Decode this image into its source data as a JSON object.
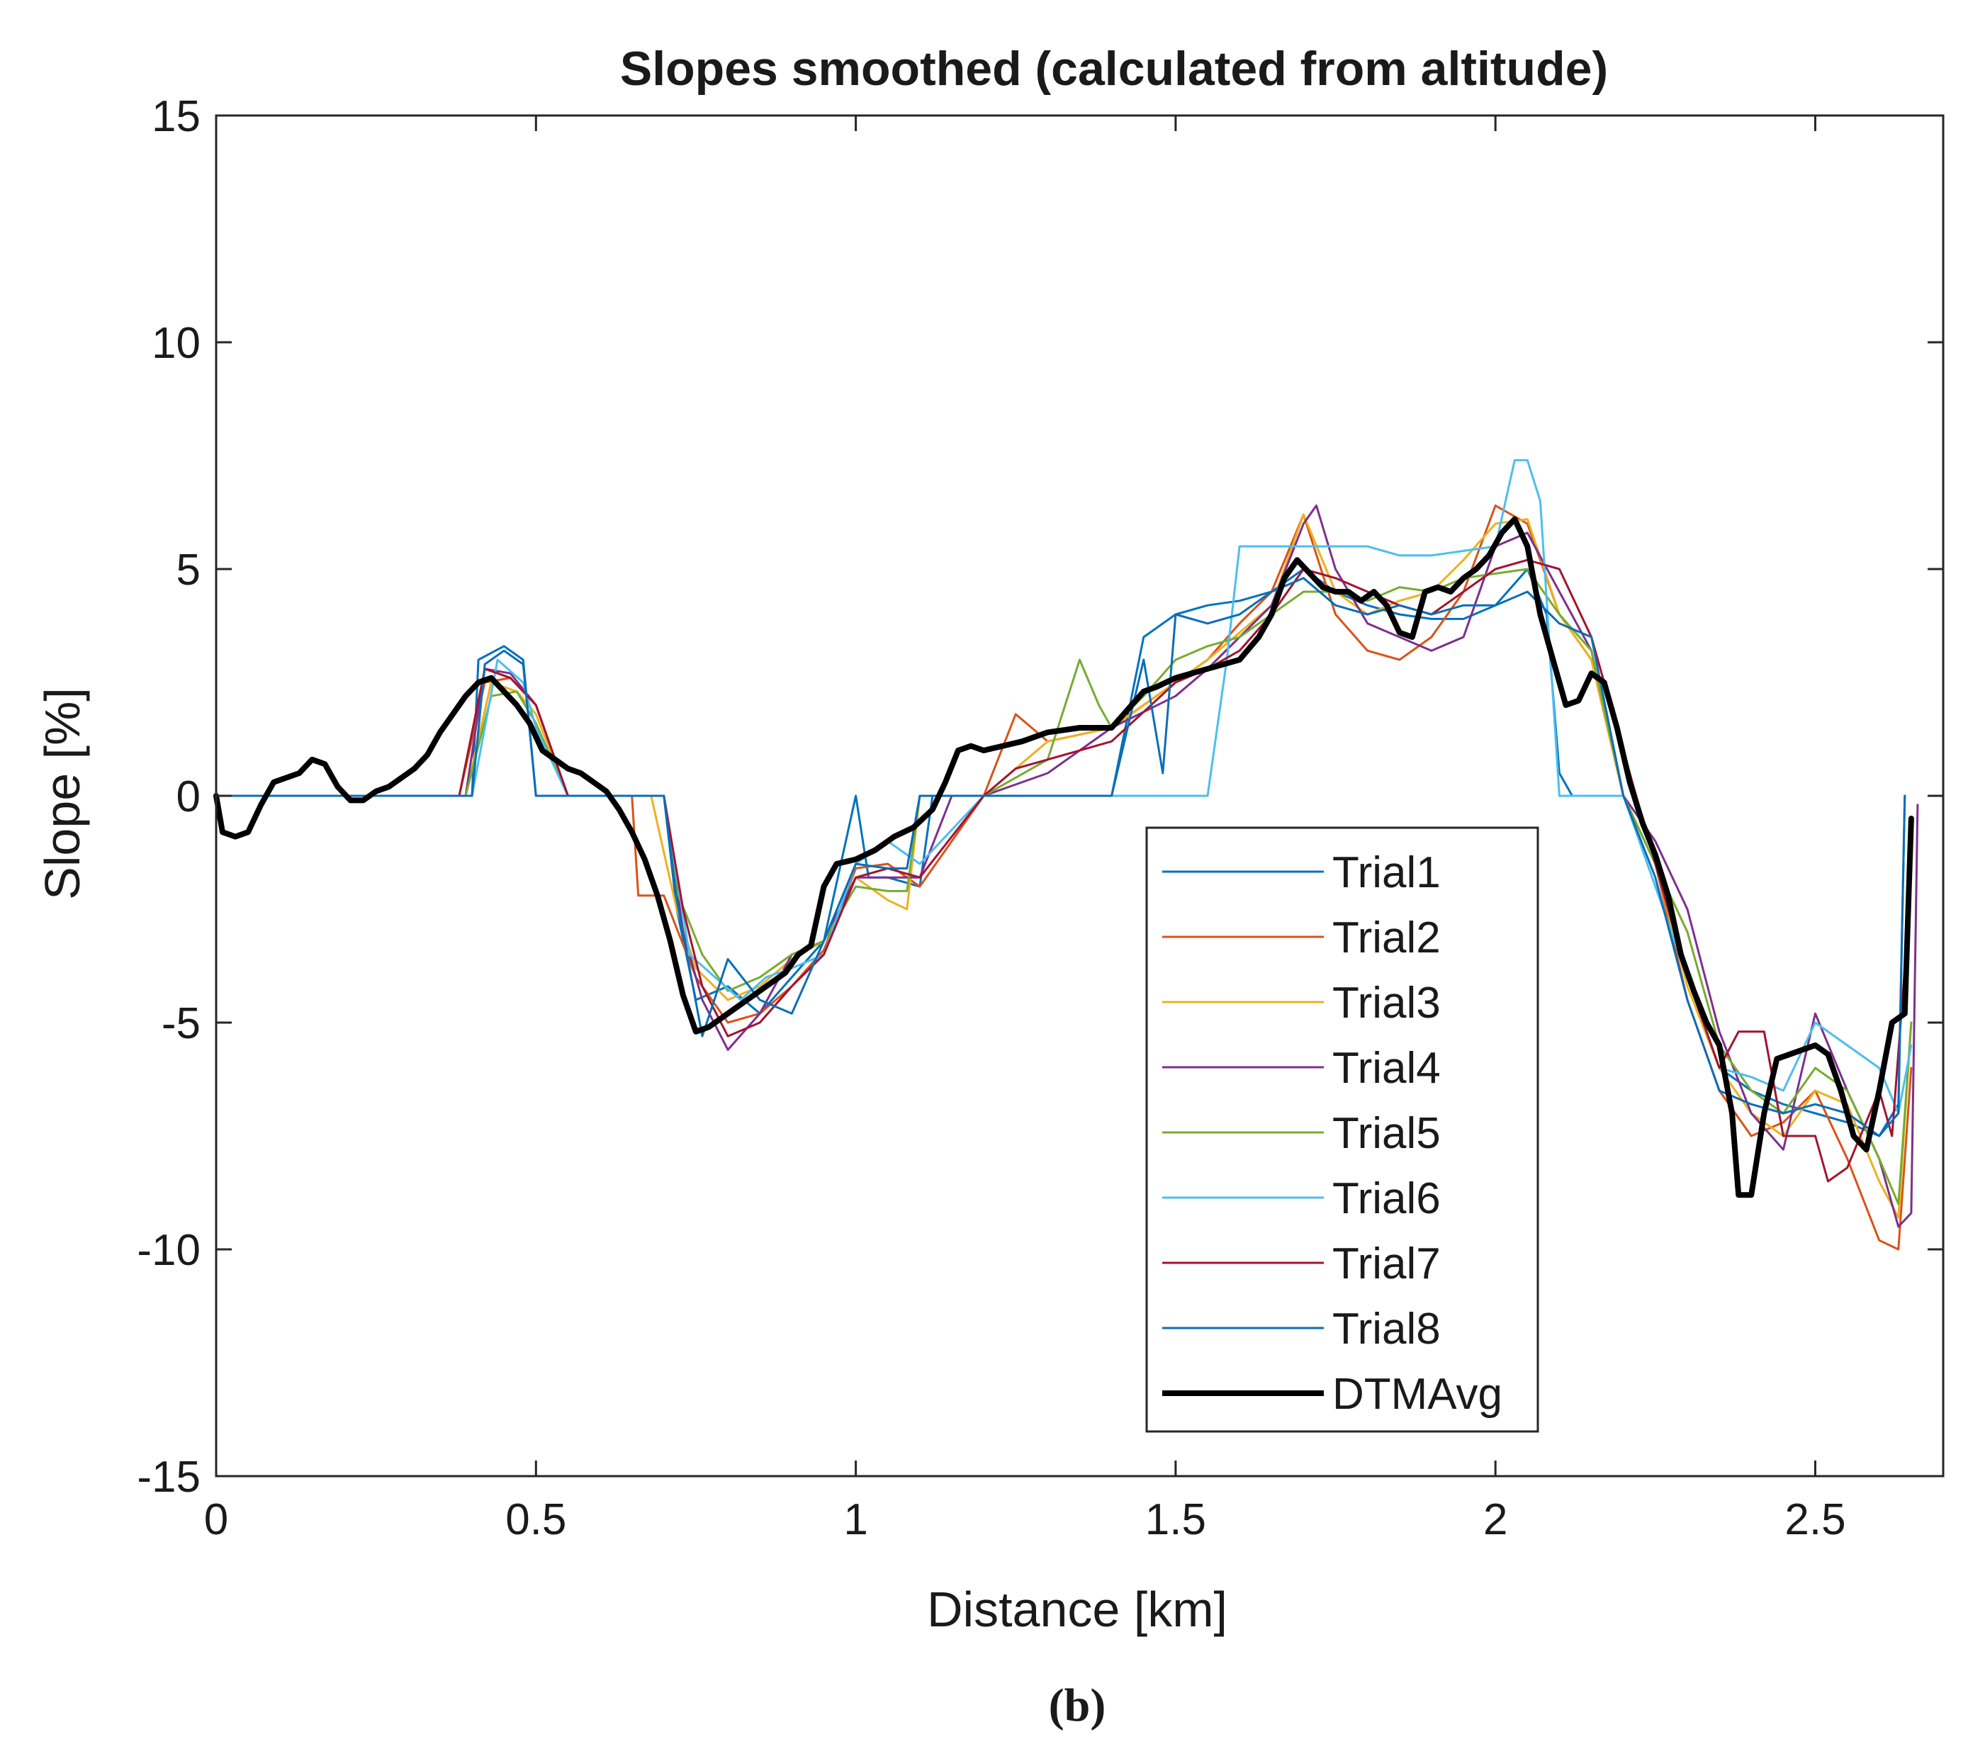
{
  "chart_data": {
    "type": "line",
    "title": "Slopes smoothed (calculated from altitude)",
    "xlabel": "Distance [km]",
    "ylabel": "Slope [%]",
    "xlim": [
      0,
      2.7
    ],
    "ylim": [
      -15,
      15
    ],
    "xticks": [
      0,
      0.5,
      1,
      1.5,
      2,
      2.5
    ],
    "xtick_labels": [
      "0",
      "0.5",
      "1",
      "1.5",
      "2",
      "2.5"
    ],
    "yticks": [
      -15,
      -10,
      -5,
      0,
      5,
      10,
      15
    ],
    "ytick_labels": [
      "-15",
      "-10",
      "-5",
      "0",
      "5",
      "10",
      "15"
    ],
    "grid": false,
    "legend_position": "center-right",
    "caption": "(b)",
    "series": [
      {
        "name": "Trial1",
        "color": "#0072BD",
        "width": 3,
        "x": [
          0,
          0.4,
          0.41,
          0.45,
          0.48,
          0.5,
          0.55,
          0.6,
          0.65,
          0.7,
          0.72,
          0.75,
          0.8,
          0.85,
          0.9,
          0.95,
          1.0,
          1.02,
          1.05,
          1.1,
          1.12,
          1.2,
          1.3,
          1.4,
          1.45,
          1.5,
          1.55,
          1.6,
          1.65,
          1.7,
          1.75,
          1.8,
          1.85,
          1.9,
          1.95,
          2.0,
          2.05,
          2.08,
          2.1,
          2.12,
          2.15,
          2.2,
          2.25,
          2.3,
          2.35,
          2.4,
          2.45,
          2.5,
          2.55,
          2.6,
          2.63,
          2.64
        ],
        "y": [
          0,
          0,
          3.0,
          3.3,
          3.0,
          0,
          0,
          0,
          0,
          0,
          -2.5,
          -4.5,
          -4.2,
          -4.8,
          -4.0,
          -3.2,
          0,
          -1.8,
          -1.8,
          -2.0,
          0,
          0,
          0,
          0,
          3.5,
          4.0,
          4.2,
          4.3,
          4.5,
          5.0,
          4.5,
          4.2,
          4.0,
          3.9,
          3.9,
          4.2,
          5.0,
          4.0,
          0.5,
          0,
          0,
          0,
          -1.5,
          -4.0,
          -6.0,
          -6.5,
          -6.8,
          -7.0,
          -7.2,
          -7.5,
          -6.8,
          0
        ]
      },
      {
        "name": "Trial2",
        "color": "#D95319",
        "width": 3,
        "x": [
          0,
          0.38,
          0.42,
          0.46,
          0.5,
          0.55,
          0.6,
          0.65,
          0.66,
          0.7,
          0.75,
          0.8,
          0.85,
          0.9,
          0.95,
          1.0,
          1.05,
          1.1,
          1.2,
          1.25,
          1.3,
          1.4,
          1.5,
          1.55,
          1.6,
          1.65,
          1.7,
          1.75,
          1.8,
          1.85,
          1.9,
          1.95,
          2.0,
          2.05,
          2.1,
          2.15,
          2.2,
          2.25,
          2.3,
          2.35,
          2.4,
          2.45,
          2.5,
          2.55,
          2.6,
          2.63,
          2.65
        ],
        "y": [
          0,
          0,
          2.5,
          2.6,
          2.0,
          0,
          0,
          0,
          -2.2,
          -2.2,
          -4.0,
          -5.0,
          -4.8,
          -4.2,
          -3.4,
          -1.6,
          -1.5,
          -2.0,
          0,
          1.8,
          1.2,
          1.5,
          2.5,
          3.0,
          3.8,
          4.5,
          6.2,
          4.0,
          3.2,
          3.0,
          3.5,
          4.5,
          6.4,
          6.0,
          4.0,
          3.0,
          0,
          -1.5,
          -4.5,
          -6.5,
          -7.5,
          -7.2,
          -6.5,
          -8.0,
          -9.8,
          -10.0,
          -6.0
        ]
      },
      {
        "name": "Trial3",
        "color": "#EDB120",
        "width": 3,
        "x": [
          0,
          0.39,
          0.43,
          0.47,
          0.5,
          0.55,
          0.6,
          0.68,
          0.72,
          0.75,
          0.8,
          0.85,
          0.9,
          0.95,
          1.0,
          1.05,
          1.08,
          1.1,
          1.2,
          1.3,
          1.4,
          1.5,
          1.55,
          1.6,
          1.65,
          1.7,
          1.75,
          1.8,
          1.85,
          1.9,
          1.95,
          2.0,
          2.05,
          2.1,
          2.15,
          2.2,
          2.25,
          2.3,
          2.35,
          2.4,
          2.45,
          2.5,
          2.55,
          2.6,
          2.63,
          2.65
        ],
        "y": [
          0,
          0,
          2.5,
          2.3,
          1.8,
          0,
          0,
          0,
          -2.5,
          -3.8,
          -4.5,
          -4.2,
          -3.6,
          -3.2,
          -1.8,
          -2.3,
          -2.5,
          0,
          0,
          1.2,
          1.5,
          2.5,
          3.0,
          3.6,
          4.2,
          6.2,
          4.5,
          4.0,
          4.3,
          4.5,
          5.2,
          6.0,
          6.1,
          4.0,
          3.0,
          0,
          -1.5,
          -4.2,
          -6.0,
          -7.0,
          -7.5,
          -6.5,
          -6.8,
          -8.5,
          -9.3,
          -5.0
        ]
      },
      {
        "name": "Trial4",
        "color": "#7E2F8E",
        "width": 3,
        "x": [
          0,
          0.39,
          0.42,
          0.46,
          0.5,
          0.55,
          0.6,
          0.7,
          0.73,
          0.76,
          0.8,
          0.85,
          0.9,
          0.95,
          1.0,
          1.05,
          1.1,
          1.15,
          1.2,
          1.3,
          1.4,
          1.5,
          1.55,
          1.6,
          1.65,
          1.7,
          1.72,
          1.75,
          1.8,
          1.85,
          1.9,
          1.95,
          2.0,
          2.05,
          2.1,
          2.15,
          2.2,
          2.25,
          2.3,
          2.35,
          2.4,
          2.45,
          2.5,
          2.55,
          2.6,
          2.63,
          2.65,
          2.66
        ],
        "y": [
          0,
          0,
          2.8,
          2.7,
          2.0,
          0,
          0,
          0,
          -3.0,
          -4.5,
          -5.6,
          -4.8,
          -3.5,
          -3.2,
          -1.8,
          -1.8,
          -1.8,
          0,
          0,
          0.5,
          1.5,
          2.2,
          2.8,
          3.5,
          4.2,
          6.0,
          6.4,
          5.0,
          3.8,
          3.5,
          3.2,
          3.5,
          5.5,
          5.8,
          4.5,
          3.2,
          0,
          -1.0,
          -2.5,
          -5.2,
          -7.0,
          -7.8,
          -4.8,
          -6.5,
          -8.0,
          -9.5,
          -9.2,
          -0.2
        ]
      },
      {
        "name": "Trial5",
        "color": "#77AC30",
        "width": 3,
        "x": [
          0,
          0.39,
          0.43,
          0.47,
          0.5,
          0.55,
          0.6,
          0.7,
          0.72,
          0.76,
          0.8,
          0.85,
          0.9,
          0.95,
          1.0,
          1.05,
          1.08,
          1.1,
          1.2,
          1.3,
          1.35,
          1.38,
          1.4,
          1.45,
          1.5,
          1.55,
          1.6,
          1.65,
          1.7,
          1.75,
          1.8,
          1.85,
          1.9,
          1.95,
          2.0,
          2.05,
          2.1,
          2.15,
          2.2,
          2.25,
          2.3,
          2.35,
          2.4,
          2.45,
          2.5,
          2.55,
          2.6,
          2.63,
          2.65
        ],
        "y": [
          0,
          0,
          2.2,
          2.3,
          1.6,
          0,
          0,
          0,
          -2.1,
          -3.5,
          -4.3,
          -4.0,
          -3.5,
          -3.2,
          -2.0,
          -2.1,
          -2.1,
          0,
          0,
          0.8,
          3.0,
          2.0,
          1.5,
          2.2,
          3.0,
          3.3,
          3.5,
          4.0,
          4.5,
          4.5,
          4.3,
          4.6,
          4.5,
          4.8,
          4.9,
          5.0,
          4.0,
          3.2,
          0,
          -1.5,
          -3.0,
          -5.5,
          -6.5,
          -7.0,
          -6.0,
          -6.5,
          -8.0,
          -9.0,
          -5.0
        ]
      },
      {
        "name": "Trial6",
        "color": "#4DBEEE",
        "width": 3,
        "x": [
          0,
          0.4,
          0.44,
          0.48,
          0.5,
          0.55,
          0.6,
          0.7,
          0.74,
          0.78,
          0.82,
          0.86,
          0.9,
          0.95,
          1.0,
          1.05,
          1.1,
          1.2,
          1.3,
          1.4,
          1.5,
          1.55,
          1.58,
          1.6,
          1.62,
          1.65,
          1.7,
          1.75,
          1.8,
          1.85,
          1.9,
          1.95,
          2.0,
          2.03,
          2.05,
          2.07,
          2.1,
          2.15,
          2.2,
          2.25,
          2.3,
          2.35,
          2.4,
          2.45,
          2.5,
          2.55,
          2.6,
          2.63,
          2.65
        ],
        "y": [
          0,
          0,
          3.0,
          2.5,
          1.5,
          0,
          0,
          0,
          -3.5,
          -4.0,
          -4.5,
          -4.0,
          -3.8,
          -3.5,
          -1.5,
          -1.0,
          -1.5,
          0,
          0,
          0,
          0,
          0,
          3.0,
          5.5,
          5.5,
          5.5,
          5.5,
          5.5,
          5.5,
          5.3,
          5.3,
          5.4,
          5.5,
          7.4,
          7.4,
          6.5,
          0,
          0,
          0,
          -2.0,
          -4.0,
          -6.0,
          -6.2,
          -6.5,
          -5.0,
          -5.5,
          -6.0,
          -7.0,
          -5.5
        ]
      },
      {
        "name": "Trial7",
        "color": "#A2142F",
        "width": 3,
        "x": [
          0,
          0.38,
          0.42,
          0.46,
          0.5,
          0.55,
          0.6,
          0.7,
          0.73,
          0.76,
          0.8,
          0.85,
          0.9,
          0.95,
          1.0,
          1.05,
          1.1,
          1.2,
          1.25,
          1.3,
          1.4,
          1.5,
          1.55,
          1.6,
          1.65,
          1.7,
          1.75,
          1.8,
          1.85,
          1.9,
          1.95,
          2.0,
          2.05,
          2.1,
          2.15,
          2.2,
          2.25,
          2.3,
          2.35,
          2.38,
          2.42,
          2.45,
          2.5,
          2.52,
          2.55,
          2.6,
          2.62,
          2.64
        ],
        "y": [
          0,
          0,
          2.8,
          2.6,
          2.0,
          0,
          0,
          0,
          -2.5,
          -4.2,
          -5.3,
          -5.0,
          -4.2,
          -3.5,
          -1.8,
          -1.6,
          -1.8,
          0,
          0.6,
          0.8,
          1.2,
          2.5,
          2.8,
          3.2,
          4.0,
          5.0,
          4.8,
          4.5,
          4.2,
          4.0,
          4.5,
          5.0,
          5.2,
          5.0,
          3.5,
          1.0,
          -1.5,
          -4.0,
          -6.0,
          -5.2,
          -5.2,
          -7.5,
          -7.5,
          -8.5,
          -8.2,
          -6.5,
          -7.5,
          -3.8
        ]
      },
      {
        "name": "Trial8",
        "color": "#0B6EB5",
        "width": 3,
        "x": [
          0,
          0.4,
          0.42,
          0.45,
          0.48,
          0.5,
          0.55,
          0.6,
          0.7,
          0.72,
          0.76,
          0.8,
          0.85,
          0.9,
          0.95,
          1.0,
          1.05,
          1.08,
          1.1,
          1.2,
          1.3,
          1.4,
          1.45,
          1.48,
          1.5,
          1.55,
          1.6,
          1.65,
          1.7,
          1.75,
          1.8,
          1.85,
          1.9,
          1.95,
          2.0,
          2.05,
          2.1,
          2.15,
          2.2,
          2.25,
          2.3,
          2.35,
          2.4,
          2.45,
          2.5,
          2.55,
          2.6,
          2.63,
          2.64
        ],
        "y": [
          0,
          0,
          2.9,
          3.2,
          2.9,
          0,
          0,
          0,
          0,
          -2.3,
          -5.3,
          -3.6,
          -4.5,
          -4.8,
          -3.2,
          -1.5,
          -1.6,
          -1.6,
          0,
          0,
          0,
          0,
          3.0,
          0.5,
          4.0,
          3.8,
          4.0,
          4.5,
          4.8,
          4.2,
          4.0,
          4.2,
          4.0,
          4.2,
          4.2,
          4.5,
          3.8,
          3.5,
          0,
          -1.8,
          -4.5,
          -6.5,
          -6.8,
          -7.0,
          -6.8,
          -7.0,
          -7.5,
          -7.0,
          0
        ]
      },
      {
        "name": "DTMAvg",
        "color": "#000000",
        "width": 8,
        "x": [
          0,
          0.01,
          0.03,
          0.05,
          0.07,
          0.09,
          0.11,
          0.13,
          0.15,
          0.17,
          0.19,
          0.21,
          0.23,
          0.25,
          0.27,
          0.29,
          0.31,
          0.33,
          0.35,
          0.37,
          0.39,
          0.41,
          0.43,
          0.45,
          0.47,
          0.49,
          0.51,
          0.53,
          0.55,
          0.57,
          0.59,
          0.61,
          0.63,
          0.65,
          0.67,
          0.69,
          0.71,
          0.73,
          0.75,
          0.77,
          0.79,
          0.81,
          0.83,
          0.85,
          0.87,
          0.89,
          0.91,
          0.93,
          0.95,
          0.97,
          1.0,
          1.03,
          1.06,
          1.09,
          1.12,
          1.14,
          1.16,
          1.18,
          1.2,
          1.23,
          1.26,
          1.3,
          1.35,
          1.4,
          1.45,
          1.47,
          1.5,
          1.55,
          1.6,
          1.63,
          1.65,
          1.67,
          1.69,
          1.71,
          1.73,
          1.75,
          1.77,
          1.79,
          1.81,
          1.83,
          1.85,
          1.87,
          1.89,
          1.91,
          1.93,
          1.95,
          1.97,
          1.99,
          2.01,
          2.03,
          2.05,
          2.07,
          2.09,
          2.11,
          2.13,
          2.15,
          2.17,
          2.19,
          2.21,
          2.23,
          2.25,
          2.27,
          2.29,
          2.31,
          2.33,
          2.35,
          2.37,
          2.38,
          2.4,
          2.42,
          2.44,
          2.46,
          2.48,
          2.5,
          2.52,
          2.54,
          2.56,
          2.58,
          2.6,
          2.62,
          2.64,
          2.65
        ],
        "y": [
          0,
          -0.8,
          -0.9,
          -0.8,
          -0.2,
          0.3,
          0.4,
          0.5,
          0.8,
          0.7,
          0.2,
          -0.1,
          -0.1,
          0.1,
          0.2,
          0.4,
          0.6,
          0.9,
          1.4,
          1.8,
          2.2,
          2.5,
          2.6,
          2.3,
          2.0,
          1.6,
          1.0,
          0.8,
          0.6,
          0.5,
          0.3,
          0.1,
          -0.3,
          -0.8,
          -1.4,
          -2.2,
          -3.2,
          -4.4,
          -5.2,
          -5.1,
          -4.9,
          -4.7,
          -4.5,
          -4.3,
          -4.1,
          -3.9,
          -3.5,
          -3.3,
          -2.0,
          -1.5,
          -1.4,
          -1.2,
          -0.9,
          -0.7,
          -0.3,
          0.3,
          1.0,
          1.1,
          1.0,
          1.1,
          1.2,
          1.4,
          1.5,
          1.5,
          2.3,
          2.4,
          2.6,
          2.8,
          3.0,
          3.5,
          4.0,
          4.8,
          5.2,
          4.9,
          4.6,
          4.5,
          4.5,
          4.3,
          4.5,
          4.2,
          3.6,
          3.5,
          4.5,
          4.6,
          4.5,
          4.8,
          5.0,
          5.3,
          5.8,
          6.1,
          5.5,
          4.0,
          3.0,
          2.0,
          2.1,
          2.7,
          2.5,
          1.5,
          0.3,
          -0.6,
          -1.3,
          -2.2,
          -3.5,
          -4.3,
          -5.0,
          -5.5,
          -7.0,
          -8.8,
          -8.8,
          -7.0,
          -5.8,
          -5.7,
          -5.6,
          -5.5,
          -5.7,
          -6.5,
          -7.5,
          -7.8,
          -6.5,
          -5.0,
          -4.8,
          -0.5
        ]
      }
    ]
  }
}
